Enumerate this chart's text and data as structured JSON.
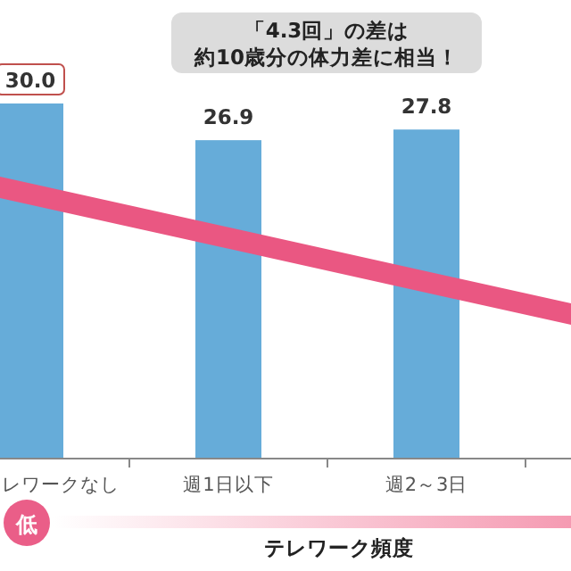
{
  "chart_data": {
    "type": "bar",
    "categories": [
      "レワークなし",
      "週1日以下",
      "週2～3日"
    ],
    "values": [
      30.0,
      26.9,
      27.8
    ],
    "color": "#66acd9",
    "value_labels": [
      "30.0",
      "26.9",
      "27.8"
    ],
    "xlabel": "テレワーク頻度",
    "annotations": [
      "「4.3回」の差は",
      "約10歳分の体力差に相当！",
      "低"
    ]
  }
}
